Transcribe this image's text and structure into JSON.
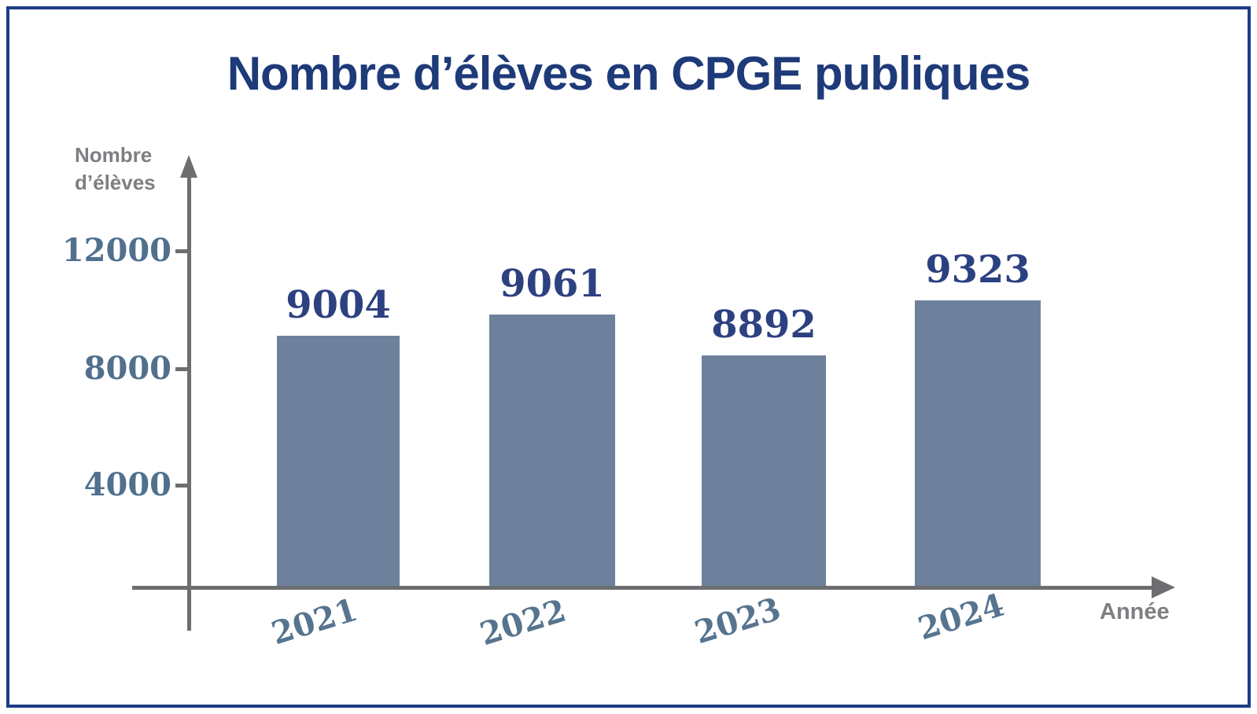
{
  "frame": {
    "border_color": "#1e3c85",
    "background_color": "#ffffff"
  },
  "chart_data": {
    "type": "bar",
    "title": "Nombre d’élèves en CPGE publiques",
    "xlabel": "Année",
    "ylabel": "Nombre d’élèves",
    "categories": [
      "2021",
      "2022",
      "2023",
      "2024"
    ],
    "values": [
      9004,
      9061,
      8892,
      9323
    ],
    "yticks": [
      4000,
      8000,
      12000
    ],
    "ylim": [
      0,
      14000
    ],
    "grid": false,
    "legend": "none",
    "bar_color": "#6d819c",
    "value_label_color": "#2d4181",
    "tick_label_color": "#50708e",
    "year_label_color": "#56748f",
    "axis_color": "#6d6e70",
    "axis_text_color": "#7d7f82",
    "title_color": "#1e3a78"
  }
}
